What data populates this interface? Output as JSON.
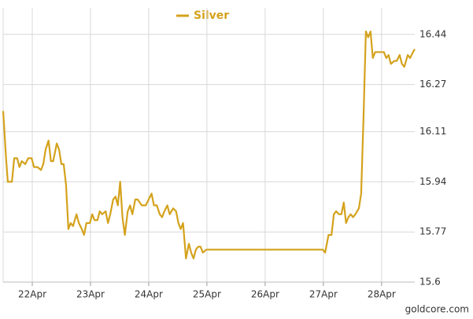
{
  "chart_data": {
    "type": "line",
    "x": [
      21.5,
      21.55,
      21.58,
      21.65,
      21.69,
      21.74,
      21.78,
      21.82,
      21.88,
      21.93,
      21.99,
      22.03,
      22.09,
      22.15,
      22.19,
      22.23,
      22.28,
      22.32,
      22.36,
      22.42,
      22.46,
      22.5,
      22.54,
      22.58,
      22.62,
      22.66,
      22.7,
      22.76,
      22.8,
      22.85,
      22.89,
      22.93,
      22.99,
      23.03,
      23.07,
      23.12,
      23.16,
      23.2,
      23.26,
      23.3,
      23.34,
      23.39,
      23.43,
      23.47,
      23.51,
      23.55,
      23.59,
      23.64,
      23.68,
      23.72,
      23.77,
      23.81,
      23.88,
      23.95,
      24.0,
      24.05,
      24.09,
      24.14,
      24.19,
      24.23,
      24.27,
      24.32,
      24.36,
      24.42,
      24.47,
      24.51,
      24.55,
      24.59,
      24.64,
      24.69,
      24.73,
      24.77,
      24.81,
      24.85,
      24.89,
      24.93,
      24.99,
      26.99,
      27.03,
      27.07,
      27.09,
      27.14,
      27.18,
      27.22,
      27.27,
      27.31,
      27.35,
      27.39,
      27.43,
      27.47,
      27.51,
      27.55,
      27.61,
      27.65,
      27.69,
      27.73,
      27.77,
      27.81,
      27.85,
      27.89,
      27.95,
      28.0,
      28.04,
      28.08,
      28.12,
      28.16,
      28.22,
      28.26,
      28.31,
      28.35,
      28.39,
      28.45,
      28.49,
      28.54,
      28.57
    ],
    "series": [
      {
        "name": "Silver",
        "color": "#d4a21c",
        "values": [
          16.18,
          16.02,
          15.94,
          15.94,
          16.02,
          16.02,
          15.99,
          16.01,
          16.0,
          16.02,
          16.02,
          15.99,
          15.99,
          15.98,
          16.0,
          16.05,
          16.08,
          16.01,
          16.01,
          16.07,
          16.05,
          16.0,
          16.0,
          15.93,
          15.78,
          15.8,
          15.79,
          15.83,
          15.8,
          15.78,
          15.76,
          15.8,
          15.8,
          15.83,
          15.81,
          15.81,
          15.84,
          15.83,
          15.84,
          15.8,
          15.83,
          15.88,
          15.89,
          15.86,
          15.94,
          15.82,
          15.76,
          15.84,
          15.86,
          15.83,
          15.88,
          15.88,
          15.86,
          15.86,
          15.88,
          15.9,
          15.86,
          15.86,
          15.83,
          15.82,
          15.84,
          15.86,
          15.83,
          15.85,
          15.84,
          15.8,
          15.78,
          15.8,
          15.68,
          15.73,
          15.7,
          15.68,
          15.71,
          15.72,
          15.72,
          15.7,
          15.71,
          15.71,
          15.7,
          15.74,
          15.76,
          15.76,
          15.83,
          15.84,
          15.83,
          15.83,
          15.87,
          15.8,
          15.82,
          15.83,
          15.82,
          15.83,
          15.85,
          15.9,
          16.16,
          16.45,
          16.43,
          16.45,
          16.36,
          16.38,
          16.38,
          16.38,
          16.38,
          16.36,
          16.37,
          16.34,
          16.35,
          16.35,
          16.37,
          16.34,
          16.33,
          16.37,
          16.36,
          16.38,
          16.39
        ]
      }
    ],
    "xlim": [
      21.5,
      28.57
    ],
    "xticks": [
      {
        "value": 22,
        "label": "22Apr"
      },
      {
        "value": 23,
        "label": "23Apr"
      },
      {
        "value": 24,
        "label": "24Apr"
      },
      {
        "value": 25,
        "label": "25Apr"
      },
      {
        "value": 26,
        "label": "26Apr"
      },
      {
        "value": 27,
        "label": "27Apr"
      },
      {
        "value": 28,
        "label": "28Apr"
      }
    ],
    "ylim": [
      15.6,
      16.53
    ],
    "yticks": [
      15.6,
      15.77,
      15.94,
      16.11,
      16.27,
      16.44
    ],
    "grid": true,
    "source": "goldcore.com"
  }
}
